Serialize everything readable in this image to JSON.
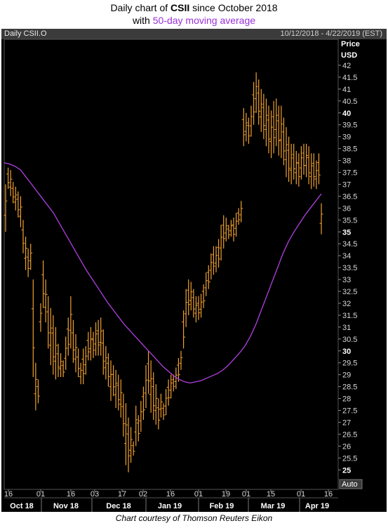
{
  "title": {
    "line1_pre": "Daily chart of ",
    "line1_bold": "CSII",
    "line1_post": " since October 2018",
    "line2_pre": "with ",
    "line2_highlight": "50-day moving average"
  },
  "header": {
    "label": "Daily CSII.O",
    "range": "10/12/2018 - 4/22/2019 (EST)"
  },
  "footer": "Chart courtesy of Thomson Reuters Eikon",
  "colors": {
    "bars": "#f0a030",
    "ma": "#b040e0",
    "background": "#000000",
    "axis_text": "#d8d8d8",
    "title_highlight": "#9b30d9"
  },
  "chart_data": {
    "type": "ohlc",
    "ylabel": "Price USD",
    "ylim": [
      25,
      42.5
    ],
    "yticks": [
      "42",
      "41.5",
      "41",
      "40.5",
      "40",
      "39.5",
      "39",
      "38.5",
      "38",
      "37.5",
      "37",
      "36.5",
      "36",
      "35.5",
      "35",
      "34.5",
      "34",
      "33.5",
      "33",
      "32.5",
      "32",
      "31.5",
      "31",
      "30.5",
      "30",
      "29.5",
      "29",
      "28.5",
      "28",
      "27.5",
      "27",
      "26.5",
      "26",
      "25.5",
      "25"
    ],
    "ytick_bold": [
      "40",
      "35",
      "30",
      "25"
    ],
    "scale_mode": "Auto",
    "xday_ticks": [
      "16",
      "01",
      "16",
      "03",
      "17",
      "02",
      "16",
      "01",
      "19",
      "01",
      "15",
      "01",
      "16"
    ],
    "month_labels": [
      "Oct 18",
      "Nov 18",
      "Dec 18",
      "Jan 19",
      "Feb 19",
      "Mar 19",
      "Apr 19"
    ],
    "series": [
      {
        "name": "Daily CSII.O",
        "high": [
          37.0,
          37.7,
          37.6,
          37.1,
          36.9,
          36.7,
          36.5,
          35.5,
          34.8,
          34.3,
          34.5,
          33.0,
          29.5,
          28.8,
          32.0,
          33.8,
          33.0,
          32.3,
          31.8,
          31.5,
          31.0,
          30.3,
          29.9,
          29.6,
          30.6,
          31.4,
          32.3,
          31.3,
          30.7,
          30.1,
          29.5,
          30.1,
          30.2,
          30.8,
          31.0,
          30.8,
          31.2,
          31.3,
          31.4,
          30.9,
          30.2,
          29.9,
          29.6,
          29.4,
          29.2,
          29.0,
          28.8,
          28.2,
          27.8,
          27.2,
          26.8,
          26.2,
          27.7,
          27.3,
          27.9,
          28.5,
          29.4,
          30.0,
          29.6,
          29.1,
          28.6,
          28.0,
          28.2,
          27.8,
          28.4,
          28.8,
          29.0,
          29.0,
          29.3,
          29.7,
          30.0,
          31.7,
          32.6,
          33.0,
          32.9,
          32.6,
          32.3,
          32.3,
          32.4,
          32.8,
          33.3,
          33.6,
          34.1,
          34.4,
          34.4,
          34.7,
          35.3,
          35.7,
          35.6,
          35.3,
          35.5,
          35.6,
          35.8,
          36.0,
          36.3,
          40.2,
          40.0,
          39.8,
          40.3,
          41.3,
          41.7,
          41.4,
          41.0,
          40.8,
          40.6,
          40.3,
          40.1,
          40.5,
          40.6,
          40.3,
          40.3,
          39.8,
          39.4,
          39.0,
          38.7,
          38.7,
          38.4,
          38.3,
          38.6,
          38.7,
          38.7,
          38.6,
          38.3,
          38.3,
          38.0,
          38.3,
          36.2
        ],
        "low": [
          35.0,
          36.8,
          36.5,
          36.2,
          35.9,
          35.6,
          35.2,
          34.1,
          33.4,
          33.1,
          33.4,
          28.9,
          27.5,
          27.8,
          30.8,
          31.8,
          31.2,
          30.1,
          29.4,
          29.0,
          28.8,
          28.9,
          28.9,
          28.9,
          29.2,
          29.8,
          30.1,
          29.5,
          29.1,
          28.9,
          28.6,
          28.6,
          29.0,
          29.6,
          29.6,
          29.7,
          29.8,
          29.8,
          29.8,
          29.0,
          28.8,
          28.5,
          27.9,
          28.1,
          27.6,
          27.5,
          27.2,
          26.4,
          25.2,
          24.9,
          25.3,
          25.6,
          26.0,
          26.2,
          26.6,
          27.1,
          27.6,
          28.2,
          27.4,
          27.1,
          26.9,
          26.7,
          27.2,
          27.1,
          27.3,
          27.7,
          28.0,
          28.3,
          28.4,
          28.7,
          29.2,
          30.1,
          31.0,
          31.5,
          31.7,
          31.4,
          31.2,
          31.3,
          31.4,
          31.8,
          32.3,
          32.6,
          33.0,
          33.2,
          33.3,
          33.5,
          33.8,
          34.3,
          34.6,
          34.7,
          34.8,
          34.6,
          34.8,
          35.3,
          35.4,
          38.6,
          38.8,
          38.7,
          39.0,
          39.5,
          40.0,
          39.5,
          39.2,
          38.9,
          38.6,
          38.3,
          38.1,
          38.3,
          38.6,
          38.2,
          38.1,
          37.8,
          37.3,
          37.1,
          37.0,
          37.2,
          37.0,
          36.9,
          37.2,
          37.4,
          37.3,
          37.0,
          36.8,
          36.9,
          36.8,
          37.0,
          34.9
        ],
        "ma50": [
          37.9,
          37.85,
          37.75,
          37.6,
          37.3,
          37.0,
          36.7,
          36.4,
          36.1,
          35.8,
          35.4,
          35.0,
          34.6,
          34.2,
          33.8,
          33.4,
          33.05,
          32.7,
          32.35,
          32.0,
          31.7,
          31.4,
          31.1,
          30.85,
          30.6,
          30.35,
          30.1,
          29.85,
          29.6,
          29.35,
          29.15,
          28.95,
          28.8,
          28.7,
          28.65,
          28.7,
          28.75,
          28.85,
          28.95,
          29.05,
          29.2,
          29.4,
          29.65,
          29.9,
          30.2,
          30.6,
          31.1,
          31.7,
          32.3,
          32.9,
          33.5,
          34.1,
          34.6,
          35.0,
          35.35,
          35.7,
          36.0,
          36.3,
          36.6
        ]
      }
    ]
  }
}
